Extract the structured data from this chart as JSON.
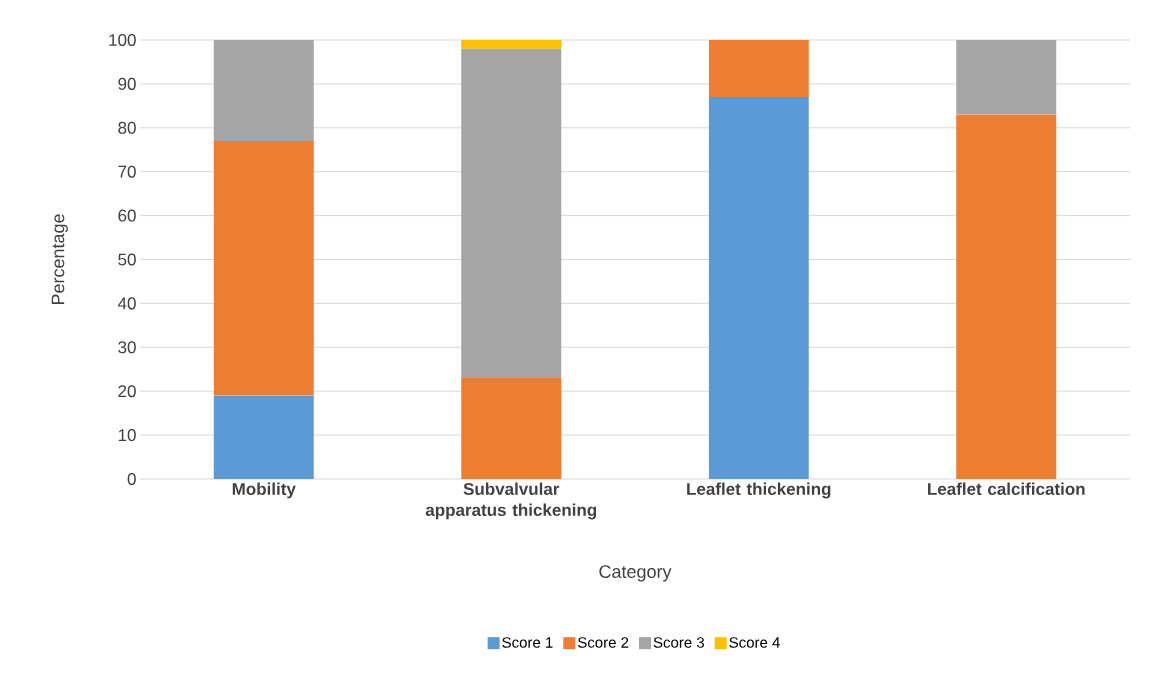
{
  "chart_data": {
    "type": "bar",
    "stacked": true,
    "xlabel": "Category",
    "ylabel": "Percentage",
    "categories": [
      "Mobility",
      "Subvalvular apparatus thickening",
      "Leaflet thickening",
      "Leaflet calcification"
    ],
    "series": [
      {
        "name": "Score 1",
        "color": "#5b9bd5",
        "values": [
          19,
          null,
          87,
          null
        ]
      },
      {
        "name": "Score 2",
        "color": "#ed7d31",
        "values": [
          58,
          23,
          13,
          83
        ]
      },
      {
        "name": "Score 3",
        "color": "#a5a5a5",
        "values": [
          23,
          75,
          null,
          17
        ]
      },
      {
        "name": "Score 4",
        "color": "#ffc000",
        "values": [
          null,
          2,
          null,
          null
        ]
      }
    ],
    "ylim": [
      0,
      100
    ],
    "yticks": [
      0,
      10,
      20,
      30,
      40,
      50,
      60,
      70,
      80,
      90,
      100
    ],
    "grid": "y",
    "legend": "bottom"
  }
}
